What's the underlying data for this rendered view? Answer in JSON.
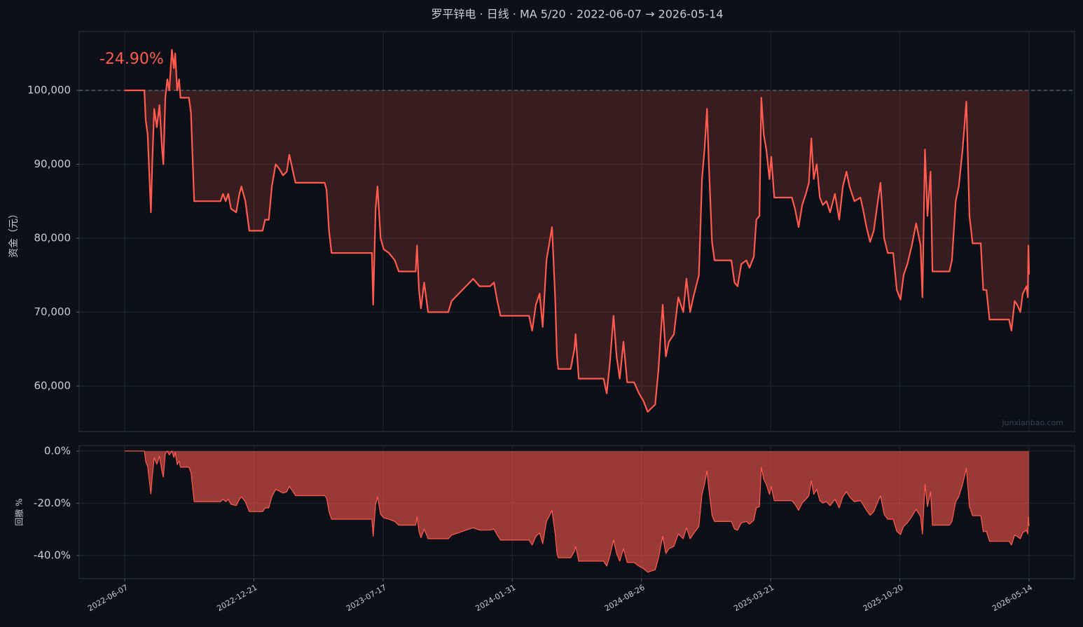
{
  "chart_data": [
    {
      "type": "line",
      "title": "罗平锌电 · 日线 · MA 5/20 · 2022-06-07 → 2026-05-14",
      "ylabel": "资金（元）",
      "annotation": "-24.90%",
      "watermark": "junxianbao.com",
      "color": "#ff5a4f",
      "baseline": 100000,
      "grid": true,
      "xlim": [
        "2022-03-30",
        "2026-07-25"
      ],
      "xticks": [
        "2022-06-07",
        "2022-12-21",
        "2023-07-17",
        "2024-01-31",
        "2024-08-26",
        "2025-03-21",
        "2025-10-20",
        "2026-05-14"
      ],
      "ylim": [
        53840,
        107960
      ],
      "yticks": [
        {
          "value": 60000,
          "label": "60,000"
        },
        {
          "value": 70000,
          "label": "70,000"
        },
        {
          "value": 80000,
          "label": "80,000"
        },
        {
          "value": 90000,
          "label": "90,000"
        },
        {
          "value": 100000,
          "label": "100,000"
        }
      ],
      "x": [
        "2022-06-07",
        "2022-07-07",
        "2022-07-09",
        "2022-07-12",
        "2022-07-17",
        "2022-07-19",
        "2022-07-22",
        "2022-07-26",
        "2022-07-30",
        "2022-08-03",
        "2022-08-05",
        "2022-08-08",
        "2022-08-11",
        "2022-08-14",
        "2022-08-18",
        "2022-08-21",
        "2022-08-23",
        "2022-08-26",
        "2022-08-29",
        "2022-08-31",
        "2022-09-13",
        "2022-09-16",
        "2022-09-21",
        "2022-10-31",
        "2022-11-04",
        "2022-11-08",
        "2022-11-12",
        "2022-11-16",
        "2022-11-24",
        "2022-11-29",
        "2022-12-02",
        "2022-12-08",
        "2022-12-14",
        "2023-01-04",
        "2023-01-08",
        "2023-01-14",
        "2023-01-19",
        "2023-01-25",
        "2023-01-30",
        "2023-02-06",
        "2023-02-12",
        "2023-02-16",
        "2023-02-22",
        "2023-02-26",
        "2023-04-14",
        "2023-04-17",
        "2023-04-21",
        "2023-04-25",
        "2023-06-29",
        "2023-07-01",
        "2023-07-05",
        "2023-07-08",
        "2023-07-13",
        "2023-07-18",
        "2023-07-26",
        "2023-08-04",
        "2023-08-10",
        "2023-09-05",
        "2023-09-07",
        "2023-09-10",
        "2023-09-13",
        "2023-09-18",
        "2023-09-24",
        "2023-10-25",
        "2023-10-30",
        "2023-11-10",
        "2023-11-21",
        "2023-12-02",
        "2023-12-12",
        "2023-12-28",
        "2024-01-03",
        "2024-01-08",
        "2024-01-13",
        "2024-02-27",
        "2024-03-03",
        "2024-03-09",
        "2024-03-15",
        "2024-03-20",
        "2024-03-26",
        "2024-04-01",
        "2024-04-04",
        "2024-04-09",
        "2024-04-12",
        "2024-04-14",
        "2024-05-04",
        "2024-05-10",
        "2024-05-12",
        "2024-05-17",
        "2024-06-26",
        "2024-07-01",
        "2024-07-06",
        "2024-07-12",
        "2024-07-17",
        "2024-07-22",
        "2024-07-28",
        "2024-08-03",
        "2024-08-14",
        "2024-08-22",
        "2024-08-29",
        "2024-09-05",
        "2024-09-17",
        "2024-09-22",
        "2024-09-29",
        "2024-10-04",
        "2024-10-09",
        "2024-10-17",
        "2024-10-24",
        "2024-11-01",
        "2024-11-06",
        "2024-11-12",
        "2024-11-17",
        "2024-11-26",
        "2024-12-01",
        "2024-12-05",
        "2024-12-09",
        "2024-12-12",
        "2024-12-17",
        "2024-12-21",
        "2025-01-17",
        "2025-01-22",
        "2025-01-27",
        "2025-02-02",
        "2025-02-10",
        "2025-02-15",
        "2025-02-22",
        "2025-02-26",
        "2025-03-03",
        "2025-03-06",
        "2025-03-10",
        "2025-03-14",
        "2025-03-19",
        "2025-03-22",
        "2025-03-27",
        "2025-04-25",
        "2025-04-30",
        "2025-05-06",
        "2025-05-12",
        "2025-05-18",
        "2025-05-23",
        "2025-05-27",
        "2025-05-31",
        "2025-06-05",
        "2025-06-10",
        "2025-06-15",
        "2025-06-21",
        "2025-06-27",
        "2025-07-05",
        "2025-07-12",
        "2025-07-18",
        "2025-07-24",
        "2025-07-29",
        "2025-08-06",
        "2025-08-16",
        "2025-08-20",
        "2025-08-26",
        "2025-09-01",
        "2025-09-07",
        "2025-09-12",
        "2025-09-18",
        "2025-09-24",
        "2025-09-30",
        "2025-10-09",
        "2025-10-15",
        "2025-10-21",
        "2025-10-26",
        "2025-11-01",
        "2025-11-08",
        "2025-11-15",
        "2025-11-22",
        "2025-11-25",
        "2025-11-29",
        "2025-12-03",
        "2025-12-08",
        "2025-12-11",
        "2026-01-07",
        "2026-01-11",
        "2026-01-17",
        "2026-01-22",
        "2026-01-28",
        "2026-02-03",
        "2026-02-08",
        "2026-02-13",
        "2026-02-26",
        "2026-03-02",
        "2026-03-07",
        "2026-03-12",
        "2026-04-12",
        "2026-04-16",
        "2026-04-21",
        "2026-04-25",
        "2026-04-30",
        "2026-05-04",
        "2026-05-10",
        "2026-05-12",
        "2026-05-13",
        "2026-05-14"
      ],
      "values": [
        100000,
        100000,
        96000,
        94000,
        83500,
        90000,
        97500,
        95000,
        98000,
        92000,
        90000,
        99000,
        101500,
        100000,
        105500,
        103000,
        105000,
        100000,
        101500,
        99000,
        99000,
        97000,
        85000,
        85000,
        86000,
        85000,
        86000,
        84000,
        83500,
        86000,
        87000,
        85000,
        81000,
        81000,
        82500,
        82500,
        87000,
        90000,
        89500,
        88500,
        89000,
        91300,
        89000,
        87500,
        87500,
        86500,
        81000,
        78000,
        78000,
        71000,
        84000,
        87000,
        80000,
        78500,
        78000,
        77000,
        75500,
        75500,
        79000,
        73000,
        70500,
        74000,
        70000,
        70000,
        71500,
        72500,
        73500,
        74500,
        73500,
        73500,
        74000,
        71500,
        69500,
        69500,
        67500,
        71000,
        72500,
        68000,
        77000,
        80000,
        81500,
        72000,
        64000,
        62300,
        62300,
        65000,
        67000,
        61000,
        61000,
        59000,
        63000,
        69500,
        64000,
        61000,
        66000,
        60500,
        60500,
        59000,
        58000,
        56500,
        57500,
        62000,
        71000,
        64000,
        66000,
        67000,
        72000,
        70000,
        74500,
        70000,
        72000,
        75000,
        88000,
        92000,
        97500,
        90000,
        79500,
        77000,
        77000,
        74000,
        73500,
        76500,
        77000,
        76000,
        77500,
        82500,
        83000,
        99000,
        94000,
        92000,
        88000,
        91000,
        85500,
        85500,
        84000,
        81500,
        84500,
        86000,
        87500,
        93500,
        88000,
        90000,
        85500,
        84500,
        85000,
        83500,
        86000,
        82500,
        87000,
        89000,
        87000,
        85000,
        85500,
        84000,
        81500,
        79500,
        81000,
        84000,
        87500,
        80000,
        78000,
        78000,
        73000,
        71700,
        75000,
        76500,
        79000,
        82000,
        79000,
        72000,
        92000,
        83000,
        89000,
        75500,
        75500,
        77000,
        85000,
        87000,
        92000,
        98500,
        83000,
        79300,
        79300,
        73000,
        73000,
        69000,
        69000,
        67500,
        71500,
        71000,
        70000,
        72500,
        73500,
        72000,
        79000,
        75100
      ]
    },
    {
      "type": "area",
      "ylabel": "回撤 %",
      "color": "#ff5a4f",
      "grid": true,
      "xlim": [
        "2022-03-30",
        "2026-07-25"
      ],
      "xticks": [
        "2022-06-07",
        "2022-12-21",
        "2023-07-17",
        "2024-01-31",
        "2024-08-26",
        "2025-03-21",
        "2025-10-20",
        "2026-05-14"
      ],
      "ylim": [
        -48.9,
        2.1
      ],
      "yticks": [
        {
          "value": -40,
          "label": "-40.0%"
        },
        {
          "value": -20,
          "label": "-20.0%"
        },
        {
          "value": 0,
          "label": "0.0%"
        }
      ],
      "x": [
        "2022-06-07",
        "2022-07-07",
        "2022-07-09",
        "2022-07-12",
        "2022-07-17",
        "2022-07-19",
        "2022-07-22",
        "2022-07-26",
        "2022-07-30",
        "2022-08-03",
        "2022-08-05",
        "2022-08-08",
        "2022-08-11",
        "2022-08-14",
        "2022-08-18",
        "2022-08-21",
        "2022-08-23",
        "2022-08-26",
        "2022-08-29",
        "2022-08-31",
        "2022-09-13",
        "2022-09-16",
        "2022-09-21",
        "2022-10-31",
        "2022-11-04",
        "2022-11-08",
        "2022-11-12",
        "2022-11-16",
        "2022-11-24",
        "2022-11-29",
        "2022-12-02",
        "2022-12-08",
        "2022-12-14",
        "2023-01-04",
        "2023-01-08",
        "2023-01-14",
        "2023-01-19",
        "2023-01-25",
        "2023-01-30",
        "2023-02-06",
        "2023-02-12",
        "2023-02-16",
        "2023-02-22",
        "2023-02-26",
        "2023-04-14",
        "2023-04-17",
        "2023-04-21",
        "2023-04-25",
        "2023-06-29",
        "2023-07-01",
        "2023-07-05",
        "2023-07-08",
        "2023-07-13",
        "2023-07-18",
        "2023-07-26",
        "2023-08-04",
        "2023-08-10",
        "2023-09-05",
        "2023-09-07",
        "2023-09-10",
        "2023-09-13",
        "2023-09-18",
        "2023-09-24",
        "2023-10-25",
        "2023-10-30",
        "2023-11-10",
        "2023-11-21",
        "2023-12-02",
        "2023-12-12",
        "2023-12-28",
        "2024-01-03",
        "2024-01-08",
        "2024-01-13",
        "2024-02-27",
        "2024-03-03",
        "2024-03-09",
        "2024-03-15",
        "2024-03-20",
        "2024-03-26",
        "2024-04-01",
        "2024-04-04",
        "2024-04-09",
        "2024-04-12",
        "2024-04-14",
        "2024-05-04",
        "2024-05-10",
        "2024-05-12",
        "2024-05-17",
        "2024-06-26",
        "2024-07-01",
        "2024-07-06",
        "2024-07-12",
        "2024-07-17",
        "2024-07-22",
        "2024-07-28",
        "2024-08-03",
        "2024-08-14",
        "2024-08-22",
        "2024-08-29",
        "2024-09-05",
        "2024-09-17",
        "2024-09-22",
        "2024-09-29",
        "2024-10-04",
        "2024-10-09",
        "2024-10-17",
        "2024-10-24",
        "2024-11-01",
        "2024-11-06",
        "2024-11-12",
        "2024-11-17",
        "2024-11-26",
        "2024-12-01",
        "2024-12-05",
        "2024-12-09",
        "2024-12-12",
        "2024-12-17",
        "2024-12-21",
        "2025-01-17",
        "2025-01-22",
        "2025-01-27",
        "2025-02-02",
        "2025-02-10",
        "2025-02-15",
        "2025-02-22",
        "2025-02-26",
        "2025-03-03",
        "2025-03-06",
        "2025-03-10",
        "2025-03-14",
        "2025-03-19",
        "2025-03-22",
        "2025-03-27",
        "2025-04-25",
        "2025-04-30",
        "2025-05-06",
        "2025-05-12",
        "2025-05-18",
        "2025-05-23",
        "2025-05-27",
        "2025-05-31",
        "2025-06-05",
        "2025-06-10",
        "2025-06-15",
        "2025-06-21",
        "2025-06-27",
        "2025-07-05",
        "2025-07-12",
        "2025-07-18",
        "2025-07-24",
        "2025-07-29",
        "2025-08-06",
        "2025-08-16",
        "2025-08-20",
        "2025-08-26",
        "2025-09-01",
        "2025-09-07",
        "2025-09-12",
        "2025-09-18",
        "2025-09-24",
        "2025-09-30",
        "2025-10-09",
        "2025-10-15",
        "2025-10-21",
        "2025-10-26",
        "2025-11-01",
        "2025-11-08",
        "2025-11-15",
        "2025-11-22",
        "2025-11-25",
        "2025-11-29",
        "2025-12-03",
        "2025-12-08",
        "2025-12-11",
        "2026-01-07",
        "2026-01-11",
        "2026-01-17",
        "2026-01-22",
        "2026-01-28",
        "2026-02-03",
        "2026-02-08",
        "2026-02-13",
        "2026-02-26",
        "2026-03-02",
        "2026-03-07",
        "2026-03-12",
        "2026-04-12",
        "2026-04-16",
        "2026-04-21",
        "2026-04-25",
        "2026-04-30",
        "2026-05-04",
        "2026-05-10",
        "2026-05-12",
        "2026-05-13",
        "2026-05-14"
      ],
      "values": [
        0,
        0,
        -4.0,
        -6.0,
        -16.5,
        -10.0,
        -2.5,
        -5.0,
        -2.0,
        -8.0,
        -10.0,
        -1.0,
        0,
        -1.5,
        0,
        -2.4,
        -0.5,
        -5.2,
        -3.8,
        -6.2,
        -6.2,
        -8.1,
        -19.4,
        -19.4,
        -18.5,
        -19.4,
        -18.5,
        -20.4,
        -20.9,
        -18.5,
        -17.5,
        -19.4,
        -23.2,
        -23.2,
        -21.8,
        -21.8,
        -17.5,
        -14.7,
        -15.2,
        -16.1,
        -15.6,
        -13.5,
        -15.6,
        -17.1,
        -17.1,
        -18.0,
        -23.2,
        -26.1,
        -26.1,
        -32.7,
        -20.4,
        -17.5,
        -24.2,
        -25.6,
        -26.1,
        -27.0,
        -28.4,
        -28.4,
        -25.1,
        -30.8,
        -33.2,
        -29.9,
        -33.6,
        -33.6,
        -32.2,
        -31.3,
        -30.3,
        -29.4,
        -30.3,
        -30.3,
        -29.9,
        -32.2,
        -34.1,
        -34.1,
        -36.0,
        -32.7,
        -31.3,
        -35.5,
        -27.0,
        -24.2,
        -22.7,
        -31.8,
        -39.3,
        -40.9,
        -40.9,
        -38.4,
        -36.5,
        -42.2,
        -42.2,
        -44.1,
        -40.3,
        -34.1,
        -39.3,
        -42.2,
        -37.4,
        -42.7,
        -42.7,
        -44.1,
        -45.0,
        -46.4,
        -45.5,
        -41.2,
        -32.7,
        -39.3,
        -37.4,
        -36.5,
        -31.8,
        -33.6,
        -29.4,
        -33.6,
        -31.8,
        -28.9,
        -16.6,
        -12.8,
        -7.6,
        -14.7,
        -24.6,
        -27.0,
        -27.0,
        -29.9,
        -30.3,
        -27.5,
        -27.0,
        -28.0,
        -26.5,
        -21.8,
        -21.3,
        -6.2,
        -10.9,
        -12.8,
        -16.6,
        -13.7,
        -19.0,
        -19.0,
        -20.4,
        -22.7,
        -19.9,
        -18.5,
        -17.1,
        -11.4,
        -16.6,
        -14.7,
        -19.0,
        -19.9,
        -19.4,
        -20.9,
        -18.5,
        -21.8,
        -17.5,
        -15.6,
        -17.5,
        -19.4,
        -19.0,
        -20.4,
        -22.7,
        -24.6,
        -23.2,
        -20.4,
        -17.1,
        -24.2,
        -26.1,
        -26.1,
        -30.8,
        -32.0,
        -28.9,
        -27.5,
        -25.1,
        -22.3,
        -25.1,
        -31.8,
        -12.8,
        -21.3,
        -15.6,
        -28.4,
        -28.4,
        -27.0,
        -19.4,
        -17.5,
        -12.8,
        -6.6,
        -21.3,
        -24.8,
        -24.8,
        -30.8,
        -30.8,
        -34.6,
        -34.6,
        -36.0,
        -32.2,
        -32.7,
        -33.6,
        -31.3,
        -30.3,
        -31.8,
        -25.1,
        -28.8
      ]
    }
  ]
}
